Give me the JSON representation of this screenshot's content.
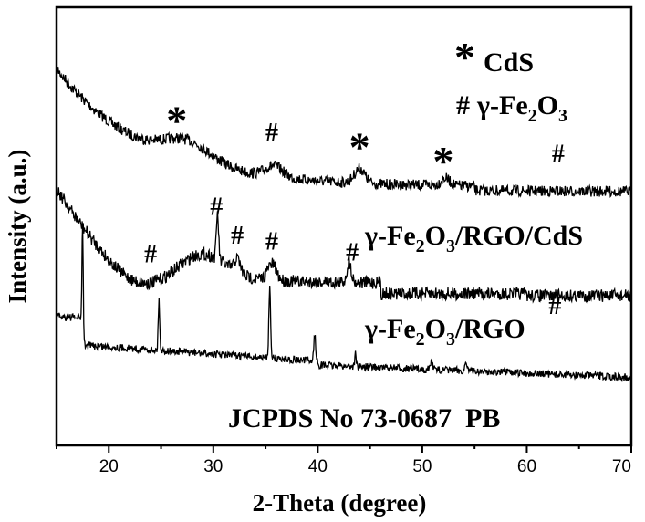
{
  "chart_data": {
    "type": "line",
    "title": "",
    "xlabel": "2-Theta (degree)",
    "ylabel": "Intensity (a.u.)",
    "xlim": [
      15,
      70
    ],
    "x_ticks": [
      20,
      30,
      40,
      50,
      60,
      70
    ],
    "y_ticks_labeled": false,
    "grid": false,
    "legend": {
      "items": [
        {
          "symbol": "*",
          "label": "CdS"
        },
        {
          "symbol": "#",
          "label": "γ-Fe",
          "sub1": "2",
          "label2": "O",
          "sub2": "3"
        }
      ]
    },
    "series": [
      {
        "name": "γ-Fe2O3/RGO/CdS",
        "label_parts": [
          "γ-Fe",
          "2",
          "O",
          "3",
          "/RGO/CdS"
        ],
        "markers": [
          {
            "symbol": "*",
            "x": 26.5
          },
          {
            "symbol": "#",
            "x": 35.6
          },
          {
            "symbol": "*",
            "x": 44.0
          },
          {
            "symbol": "*",
            "x": 52.0
          },
          {
            "symbol": "#",
            "x": 63.0
          }
        ]
      },
      {
        "name": "γ-Fe2O3/RGO",
        "label_parts": [
          "γ-Fe",
          "2",
          "O",
          "3",
          "/RGO"
        ],
        "markers": [
          {
            "symbol": "#",
            "x": 24.0
          },
          {
            "symbol": "#",
            "x": 30.3
          },
          {
            "symbol": "#",
            "x": 32.3
          },
          {
            "symbol": "#",
            "x": 35.6
          },
          {
            "symbol": "#",
            "x": 43.3
          },
          {
            "symbol": "#",
            "x": 62.7
          }
        ]
      },
      {
        "name": "JCPDS No 73-0687 PB",
        "label_parts": [
          "JCPDS No 73-0687  PB"
        ],
        "peaks": [
          17.5,
          24.8,
          35.4,
          39.7,
          43.6,
          50.9,
          54.2
        ]
      }
    ]
  }
}
